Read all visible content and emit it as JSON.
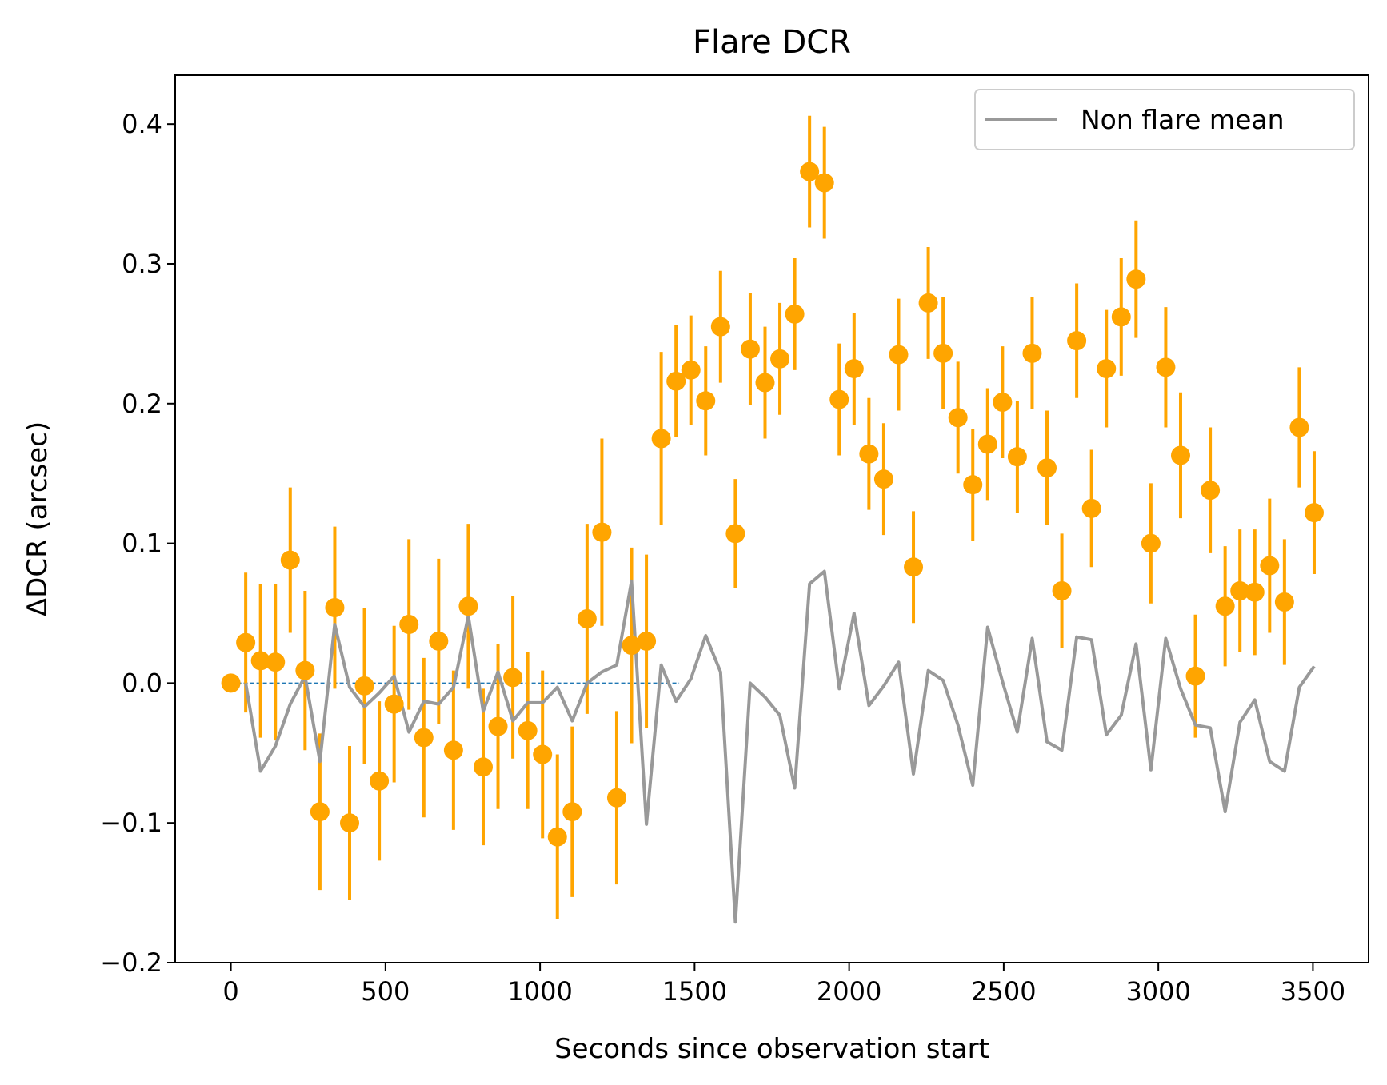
{
  "chart_data": {
    "type": "scatter",
    "title": "Flare DCR",
    "xlabel": "Seconds since observation start",
    "ylabel": "ΔDCR (arcsec)",
    "xlim": [
      -180,
      3680
    ],
    "ylim": [
      -0.2,
      0.435
    ],
    "xticks": [
      0,
      500,
      1000,
      1500,
      2000,
      2500,
      3000,
      3500
    ],
    "yticks": [
      -0.2,
      -0.1,
      0.0,
      0.1,
      0.2,
      0.3,
      0.4
    ],
    "ytick_labels": [
      "−0.2",
      "−0.1",
      "0.0",
      "0.1",
      "0.2",
      "0.3",
      "0.4"
    ],
    "grid": false,
    "legend_position": "top-right",
    "colors": {
      "points": "#ffa500",
      "errorbars": "#ffa500",
      "line": "#999999",
      "baseline": "#1f77b4"
    },
    "baseline": {
      "y": 0.0,
      "x_range": [
        0,
        1450
      ]
    },
    "series": [
      {
        "kind": "errorbar",
        "x": [
          0,
          48,
          96,
          144,
          192,
          240,
          288,
          336,
          384,
          432,
          480,
          528,
          576,
          624,
          672,
          720,
          768,
          816,
          864,
          912,
          960,
          1008,
          1056,
          1104,
          1152,
          1200,
          1248,
          1296,
          1344,
          1392,
          1440,
          1488,
          1536,
          1584,
          1632,
          1680,
          1728,
          1776,
          1824,
          1872,
          1920,
          1968,
          2016,
          2064,
          2112,
          2160,
          2208,
          2256,
          2304,
          2352,
          2400,
          2448,
          2496,
          2544,
          2592,
          2640,
          2688,
          2736,
          2784,
          2832,
          2880,
          2928,
          2976,
          3024,
          3072,
          3120,
          3168,
          3216,
          3264,
          3312,
          3360,
          3408,
          3456,
          3504
        ],
        "y": [
          0,
          0.029,
          0.016,
          0.015,
          0.088,
          0.009,
          -0.092,
          0.054,
          -0.1,
          -0.002,
          -0.07,
          -0.015,
          0.042,
          -0.039,
          0.03,
          -0.048,
          0.055,
          -0.06,
          -0.031,
          0.004,
          -0.034,
          -0.051,
          -0.11,
          -0.092,
          0.046,
          0.108,
          -0.082,
          0.027,
          0.03,
          0.175,
          0.216,
          0.224,
          0.202,
          0.255,
          0.107,
          0.239,
          0.215,
          0.232,
          0.264,
          0.366,
          0.358,
          0.203,
          0.225,
          0.164,
          0.146,
          0.235,
          0.083,
          0.272,
          0.236,
          0.19,
          0.142,
          0.171,
          0.201,
          0.162,
          0.236,
          0.154,
          0.066,
          0.245,
          0.125,
          0.225,
          0.262,
          0.289,
          0.1,
          0.226,
          0.163,
          0.005,
          0.138,
          0.055,
          0.066,
          0.065,
          0.084,
          0.058,
          0.183,
          0.122
        ],
        "yerr": [
          0,
          0.05,
          0.055,
          0.056,
          0.052,
          0.057,
          0.056,
          0.058,
          0.055,
          0.056,
          0.057,
          0.056,
          0.061,
          0.057,
          0.059,
          0.057,
          0.059,
          0.056,
          0.059,
          0.058,
          0.056,
          0.06,
          0.059,
          0.061,
          0.068,
          0.067,
          0.062,
          0.07,
          0.062,
          0.062,
          0.04,
          0.039,
          0.039,
          0.04,
          0.039,
          0.04,
          0.04,
          0.04,
          0.04,
          0.04,
          0.04,
          0.04,
          0.04,
          0.04,
          0.04,
          0.04,
          0.04,
          0.04,
          0.04,
          0.04,
          0.04,
          0.04,
          0.04,
          0.04,
          0.04,
          0.041,
          0.041,
          0.041,
          0.042,
          0.042,
          0.042,
          0.042,
          0.043,
          0.043,
          0.045,
          0.044,
          0.045,
          0.043,
          0.044,
          0.045,
          0.048,
          0.045,
          0.043,
          0.044
        ]
      },
      {
        "kind": "line",
        "name": "Non flare mean",
        "x": [
          48,
          96,
          144,
          192,
          240,
          288,
          336,
          384,
          432,
          480,
          528,
          576,
          624,
          672,
          720,
          768,
          816,
          864,
          912,
          960,
          1008,
          1056,
          1104,
          1152,
          1200,
          1248,
          1296,
          1344,
          1392,
          1440,
          1488,
          1536,
          1584,
          1632,
          1680,
          1728,
          1776,
          1824,
          1872,
          1920,
          1968,
          2016,
          2064,
          2112,
          2160,
          2208,
          2256,
          2304,
          2352,
          2400,
          2448,
          2496,
          2544,
          2592,
          2640,
          2688,
          2736,
          2784,
          2832,
          2880,
          2928,
          2976,
          3024,
          3072,
          3120,
          3168,
          3216,
          3264,
          3312,
          3360,
          3408,
          3456,
          3504
        ],
        "y": [
          0,
          -0.063,
          -0.045,
          -0.015,
          0.005,
          -0.056,
          0.042,
          -0.003,
          -0.017,
          -0.007,
          0.005,
          -0.035,
          -0.013,
          -0.015,
          -0.003,
          0.048,
          -0.02,
          0.008,
          -0.027,
          -0.014,
          -0.014,
          -0.003,
          -0.027,
          0,
          0.008,
          0.013,
          0.073,
          -0.101,
          0.013,
          -0.013,
          0.003,
          0.034,
          0.008,
          -0.171,
          0,
          -0.01,
          -0.023,
          -0.075,
          0.071,
          0.08,
          -0.004,
          0.05,
          -0.016,
          -0.002,
          0.015,
          -0.065,
          0.009,
          0.002,
          -0.03,
          -0.073,
          0.04,
          0.001,
          -0.035,
          0.032,
          -0.042,
          -0.048,
          0.033,
          0.031,
          -0.037,
          -0.023,
          0.028,
          -0.062,
          0.032,
          -0.004,
          -0.03,
          -0.032,
          -0.092,
          -0.028,
          -0.012,
          -0.056,
          -0.063,
          -0.003,
          0.012
        ]
      }
    ]
  }
}
